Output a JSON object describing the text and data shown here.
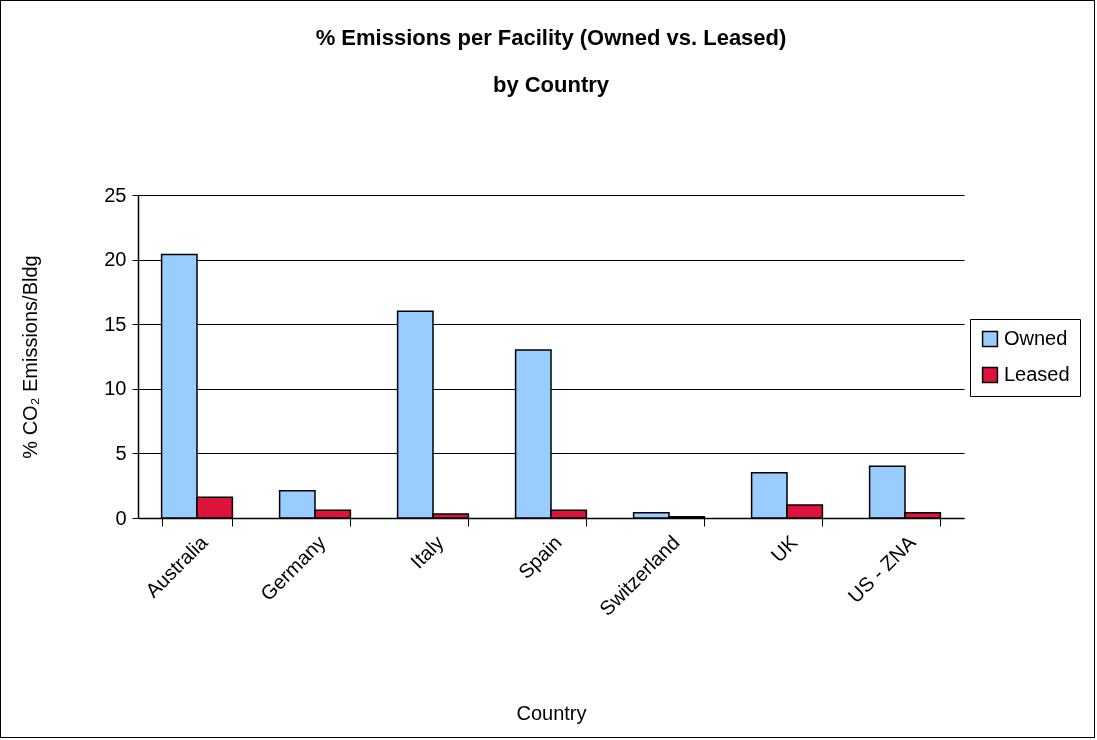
{
  "chart_data": {
    "type": "bar",
    "title": "% Emissions per Facility (Owned vs. Leased)\nby Country",
    "xlabel": "Country",
    "ylabel": "% CO₂ Emissions/Bldg",
    "categories": [
      "Australia",
      "Germany",
      "Italy",
      "Spain",
      "Switzerland",
      "UK",
      "US - ZNA"
    ],
    "series": [
      {
        "name": "Owned",
        "color": "#99ccff",
        "values": [
          20.4,
          2.1,
          16.0,
          13.0,
          0.4,
          3.5,
          4.0
        ]
      },
      {
        "name": "Leased",
        "color": "#dc143c",
        "values": [
          1.6,
          0.6,
          0.3,
          0.6,
          0.1,
          1.0,
          0.4
        ]
      }
    ],
    "ylim": [
      0,
      25
    ],
    "yticks": [
      0,
      5,
      10,
      15,
      20,
      25
    ],
    "grid": "y",
    "legend": "right"
  }
}
